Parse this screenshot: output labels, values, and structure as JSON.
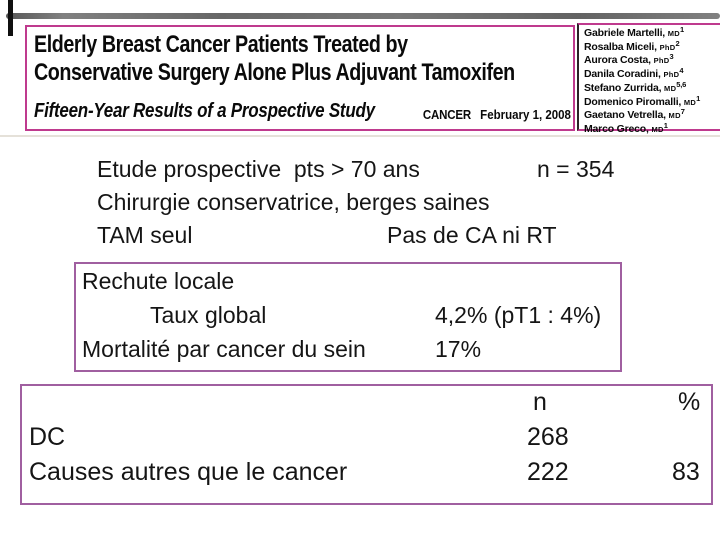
{
  "header": {
    "title_line1": "Elderly Breast Cancer Patients Treated by",
    "title_line2": "Conservative Surgery Alone Plus Adjuvant Tamoxifen",
    "subtitle": "Fifteen-Year Results of a Prospective Study",
    "journal": "CANCER",
    "date": "February 1, 2008",
    "authors": [
      {
        "name": "Gabriele Martelli,",
        "degree": "MD",
        "sup": "1"
      },
      {
        "name": "Rosalba Miceli,",
        "degree": "PhD",
        "sup": "2"
      },
      {
        "name": "Aurora Costa,",
        "degree": "PhD",
        "sup": "3"
      },
      {
        "name": "Danila Coradini,",
        "degree": "PhD",
        "sup": "4"
      },
      {
        "name": "Stefano Zurrida,",
        "degree": "MD",
        "sup": "5,6"
      },
      {
        "name": "Domenico Piromalli,",
        "degree": "MD",
        "sup": "1"
      },
      {
        "name": "Gaetano Vetrella,",
        "degree": "MD",
        "sup": "7"
      },
      {
        "name": "Marco Greco,",
        "degree": "MD",
        "sup": "1"
      }
    ]
  },
  "intro": {
    "line1_left": "Etude prospective  pts > 70 ans",
    "line1_right": "n = 354",
    "line2": "Chirurgie conservatrice, berges saines",
    "line3_left": "TAM seul",
    "line3_right": "Pas de CA ni RT"
  },
  "recurrence_box": {
    "title": "Rechute locale",
    "rows": [
      {
        "label": "Taux global",
        "value": "4,2% (pT1 : 4%)"
      },
      {
        "label": "Mortalité par cancer du sein",
        "value": "17%"
      }
    ]
  },
  "mortality_table": {
    "header": {
      "n": "n",
      "pct": "%"
    },
    "rows": [
      {
        "label": "DC",
        "n": "268",
        "pct": ""
      },
      {
        "label": "Causes autres que le cancer",
        "n": "222",
        "pct": "83"
      }
    ]
  },
  "colors": {
    "header_border": "#bf3a8e",
    "box_border": "#a05fa0",
    "scan_streak": "#4c4c4c",
    "text": "#151515"
  }
}
